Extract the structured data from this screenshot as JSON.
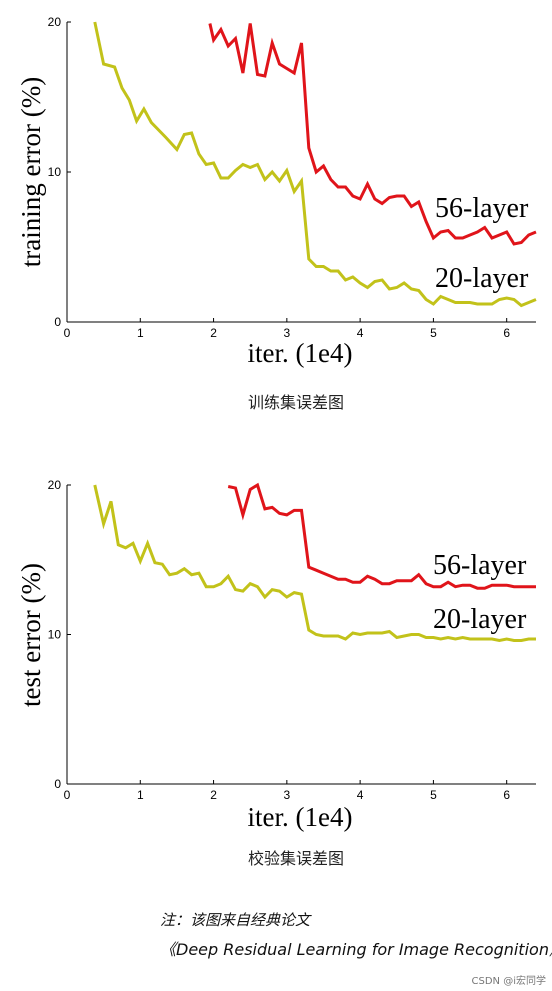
{
  "chart_data": [
    {
      "type": "line",
      "xlabel": "iter. (1e4)",
      "ylabel": "training error (%)",
      "xlim": [
        0,
        6.4
      ],
      "ylim": [
        0,
        20
      ],
      "xticks": [
        "0",
        "1",
        "2",
        "3",
        "4",
        "5",
        "6"
      ],
      "yticks": [
        "0",
        "10",
        "20"
      ],
      "caption": "训练集误差图",
      "series": [
        {
          "name": "56-layer",
          "color": "#e0141a",
          "x": [
            1.95,
            2.0,
            2.1,
            2.2,
            2.3,
            2.4,
            2.5,
            2.6,
            2.7,
            2.8,
            2.9,
            3.0,
            3.1,
            3.2,
            3.3,
            3.4,
            3.5,
            3.6,
            3.7,
            3.8,
            3.9,
            4.0,
            4.1,
            4.2,
            4.3,
            4.4,
            4.5,
            4.6,
            4.7,
            4.8,
            4.9,
            5.0,
            5.1,
            5.2,
            5.3,
            5.4,
            5.5,
            5.6,
            5.7,
            5.8,
            5.9,
            6.0,
            6.1,
            6.2,
            6.3,
            6.4
          ],
          "y": [
            19.9,
            18.8,
            19.5,
            18.4,
            18.9,
            16.6,
            19.9,
            16.5,
            16.4,
            18.6,
            17.2,
            16.9,
            16.6,
            18.6,
            11.6,
            10.0,
            10.4,
            9.5,
            9.0,
            9.0,
            8.4,
            8.2,
            9.2,
            8.2,
            7.9,
            8.3,
            8.4,
            8.4,
            7.7,
            8.0,
            6.7,
            5.6,
            6.0,
            6.1,
            5.6,
            5.6,
            5.8,
            6.0,
            6.3,
            5.6,
            5.8,
            6.0,
            5.2,
            5.3,
            5.8,
            6.0
          ]
        },
        {
          "name": "20-layer",
          "color": "#c2c21a",
          "x": [
            0.38,
            0.5,
            0.65,
            0.75,
            0.85,
            0.95,
            1.05,
            1.15,
            1.25,
            1.35,
            1.5,
            1.6,
            1.7,
            1.8,
            1.9,
            2.0,
            2.1,
            2.2,
            2.3,
            2.4,
            2.5,
            2.6,
            2.7,
            2.8,
            2.9,
            3.0,
            3.1,
            3.2,
            3.3,
            3.4,
            3.5,
            3.6,
            3.7,
            3.8,
            3.9,
            4.0,
            4.1,
            4.2,
            4.3,
            4.4,
            4.5,
            4.6,
            4.7,
            4.8,
            4.9,
            5.0,
            5.1,
            5.2,
            5.3,
            5.4,
            5.5,
            5.6,
            5.7,
            5.8,
            5.9,
            6.0,
            6.1,
            6.2,
            6.3,
            6.4
          ],
          "y": [
            20.0,
            17.2,
            17.0,
            15.6,
            14.8,
            13.4,
            14.2,
            13.3,
            12.8,
            12.3,
            11.5,
            12.5,
            12.6,
            11.2,
            10.5,
            10.6,
            9.6,
            9.6,
            10.1,
            10.5,
            10.3,
            10.5,
            9.5,
            10.0,
            9.4,
            10.1,
            8.7,
            9.4,
            4.2,
            3.7,
            3.7,
            3.4,
            3.4,
            2.8,
            3.0,
            2.6,
            2.3,
            2.7,
            2.8,
            2.2,
            2.3,
            2.6,
            2.2,
            2.1,
            1.5,
            1.2,
            1.7,
            1.5,
            1.3,
            1.3,
            1.3,
            1.2,
            1.2,
            1.2,
            1.5,
            1.6,
            1.5,
            1.1,
            1.3,
            1.5
          ]
        }
      ]
    },
    {
      "type": "line",
      "xlabel": "iter. (1e4)",
      "ylabel": "test error (%)",
      "xlim": [
        0,
        6.4
      ],
      "ylim": [
        0,
        20
      ],
      "xticks": [
        "0",
        "1",
        "2",
        "3",
        "4",
        "5",
        "6"
      ],
      "yticks": [
        "0",
        "10",
        "20"
      ],
      "caption": "校验集误差图",
      "series": [
        {
          "name": "56-layer",
          "color": "#e0141a",
          "x": [
            2.2,
            2.3,
            2.4,
            2.5,
            2.6,
            2.7,
            2.8,
            2.9,
            3.0,
            3.1,
            3.2,
            3.3,
            3.4,
            3.5,
            3.6,
            3.7,
            3.8,
            3.9,
            4.0,
            4.1,
            4.2,
            4.3,
            4.4,
            4.5,
            4.6,
            4.7,
            4.8,
            4.9,
            5.0,
            5.1,
            5.2,
            5.3,
            5.4,
            5.5,
            5.6,
            5.7,
            5.8,
            5.9,
            6.0,
            6.1,
            6.2,
            6.3,
            6.4
          ],
          "y": [
            19.9,
            19.8,
            18.0,
            19.7,
            20.0,
            18.4,
            18.5,
            18.1,
            18.0,
            18.3,
            18.3,
            14.5,
            14.3,
            14.1,
            13.9,
            13.7,
            13.7,
            13.5,
            13.5,
            13.9,
            13.7,
            13.4,
            13.4,
            13.6,
            13.6,
            13.6,
            14.0,
            13.4,
            13.2,
            13.2,
            13.5,
            13.2,
            13.3,
            13.3,
            13.1,
            13.1,
            13.3,
            13.3,
            13.3,
            13.2,
            13.2,
            13.2,
            13.2
          ]
        },
        {
          "name": "20-layer",
          "color": "#c2c21a",
          "x": [
            0.38,
            0.5,
            0.6,
            0.7,
            0.8,
            0.9,
            1.0,
            1.1,
            1.2,
            1.3,
            1.4,
            1.5,
            1.6,
            1.7,
            1.8,
            1.9,
            2.0,
            2.1,
            2.2,
            2.3,
            2.4,
            2.5,
            2.6,
            2.7,
            2.8,
            2.9,
            3.0,
            3.1,
            3.2,
            3.3,
            3.4,
            3.5,
            3.6,
            3.7,
            3.8,
            3.9,
            4.0,
            4.1,
            4.2,
            4.3,
            4.4,
            4.5,
            4.6,
            4.7,
            4.8,
            4.9,
            5.0,
            5.1,
            5.2,
            5.3,
            5.4,
            5.5,
            5.6,
            5.7,
            5.8,
            5.9,
            6.0,
            6.1,
            6.2,
            6.3,
            6.4
          ],
          "y": [
            20.0,
            17.4,
            18.9,
            16.0,
            15.8,
            16.1,
            14.9,
            16.1,
            14.8,
            14.7,
            14.0,
            14.1,
            14.4,
            14.0,
            14.1,
            13.2,
            13.2,
            13.4,
            13.9,
            13.0,
            12.9,
            13.4,
            13.2,
            12.5,
            13.0,
            12.9,
            12.5,
            12.8,
            12.7,
            10.3,
            10.0,
            9.9,
            9.9,
            9.9,
            9.7,
            10.1,
            10.0,
            10.1,
            10.1,
            10.1,
            10.2,
            9.8,
            9.9,
            10.0,
            10.0,
            9.8,
            9.8,
            9.7,
            9.8,
            9.7,
            9.8,
            9.7,
            9.7,
            9.7,
            9.7,
            9.6,
            9.7,
            9.6,
            9.6,
            9.7,
            9.7
          ]
        }
      ]
    }
  ],
  "note": {
    "line1": "注：该图来自经典论文",
    "line2": "《Deep Residual Learning for Image Recognition》"
  },
  "watermark": "CSDN @i宏同学"
}
